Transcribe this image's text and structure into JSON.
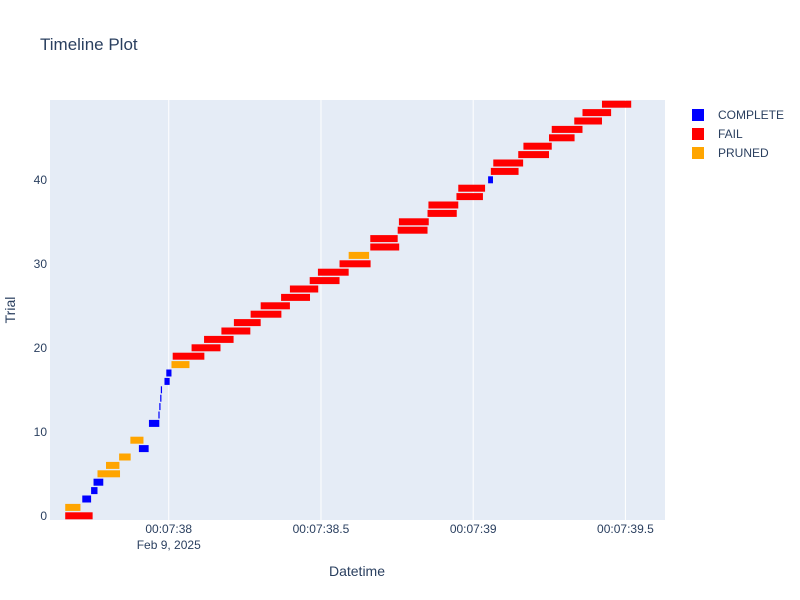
{
  "chart_data": {
    "type": "timeline",
    "title": "Timeline Plot",
    "xlabel": "Datetime",
    "ylabel": "Trial",
    "x_ticks": [
      {
        "value": "00:07:38.0",
        "label": "00:07:38",
        "sublabel": "Feb 9, 2025"
      },
      {
        "value": "00:07:38.5",
        "label": "00:07:38.5",
        "sublabel": ""
      },
      {
        "value": "00:07:39.0",
        "label": "00:07:39",
        "sublabel": ""
      },
      {
        "value": "00:07:39.5",
        "label": "00:07:39.5",
        "sublabel": ""
      }
    ],
    "xlim": [
      "00:07:37.61",
      "00:07:39.63"
    ],
    "y_ticks": [
      0,
      10,
      20,
      30,
      40
    ],
    "ylim": [
      -0.5,
      49.5
    ],
    "grid": true,
    "legend_position": "top-right",
    "colors": {
      "COMPLETE": "#0000ff",
      "FAIL": "#ff0000",
      "PRUNED": "#ffa500",
      "plot_bg": "#e5ecf6",
      "grid": "#ffffff",
      "text": "#2a3f5f"
    },
    "series": [
      {
        "name": "COMPLETE",
        "trials": [
          {
            "trial": 2,
            "start": "00:07:37.716",
            "end": "00:07:37.745"
          },
          {
            "trial": 3,
            "start": "00:07:37.745",
            "end": "00:07:37.766"
          },
          {
            "trial": 4,
            "start": "00:07:37.753",
            "end": "00:07:37.785"
          },
          {
            "trial": 8,
            "start": "00:07:37.902",
            "end": "00:07:37.934"
          },
          {
            "trial": 11,
            "start": "00:07:37.935",
            "end": "00:07:37.969"
          },
          {
            "trial": 12,
            "start": "00:07:37.966",
            "end": "00:07:37.970"
          },
          {
            "trial": 13,
            "start": "00:07:37.969",
            "end": "00:07:37.973"
          },
          {
            "trial": 14,
            "start": "00:07:37.972",
            "end": "00:07:37.976"
          },
          {
            "trial": 15,
            "start": "00:07:37.974",
            "end": "00:07:37.978"
          },
          {
            "trial": 16,
            "start": "00:07:37.986",
            "end": "00:07:38.003"
          },
          {
            "trial": 17,
            "start": "00:07:37.992",
            "end": "00:07:38.009"
          },
          {
            "trial": 40,
            "start": "00:07:39.049",
            "end": "00:07:39.065"
          }
        ]
      },
      {
        "name": "FAIL",
        "trials": [
          {
            "trial": 0,
            "start": "00:07:37.660",
            "end": "00:07:37.750"
          },
          {
            "trial": 19,
            "start": "00:07:38.013",
            "end": "00:07:38.117"
          },
          {
            "trial": 20,
            "start": "00:07:38.075",
            "end": "00:07:38.170"
          },
          {
            "trial": 21,
            "start": "00:07:38.116",
            "end": "00:07:38.213"
          },
          {
            "trial": 22,
            "start": "00:07:38.173",
            "end": "00:07:38.268"
          },
          {
            "trial": 23,
            "start": "00:07:38.214",
            "end": "00:07:38.302"
          },
          {
            "trial": 24,
            "start": "00:07:38.269",
            "end": "00:07:38.370"
          },
          {
            "trial": 25,
            "start": "00:07:38.302",
            "end": "00:07:38.398"
          },
          {
            "trial": 26,
            "start": "00:07:38.369",
            "end": "00:07:38.464"
          },
          {
            "trial": 27,
            "start": "00:07:38.398",
            "end": "00:07:38.491"
          },
          {
            "trial": 28,
            "start": "00:07:38.463",
            "end": "00:07:38.561"
          },
          {
            "trial": 29,
            "start": "00:07:38.490",
            "end": "00:07:38.591"
          },
          {
            "trial": 30,
            "start": "00:07:38.561",
            "end": "00:07:38.663"
          },
          {
            "trial": 32,
            "start": "00:07:38.662",
            "end": "00:07:38.757"
          },
          {
            "trial": 33,
            "start": "00:07:38.662",
            "end": "00:07:38.752"
          },
          {
            "trial": 34,
            "start": "00:07:38.752",
            "end": "00:07:38.850"
          },
          {
            "trial": 35,
            "start": "00:07:38.756",
            "end": "00:07:38.854"
          },
          {
            "trial": 36,
            "start": "00:07:38.850",
            "end": "00:07:38.946"
          },
          {
            "trial": 37,
            "start": "00:07:38.853",
            "end": "00:07:38.951"
          },
          {
            "trial": 38,
            "start": "00:07:38.945",
            "end": "00:07:39.032"
          },
          {
            "trial": 39,
            "start": "00:07:38.951",
            "end": "00:07:39.039"
          },
          {
            "trial": 41,
            "start": "00:07:39.058",
            "end": "00:07:39.149"
          },
          {
            "trial": 42,
            "start": "00:07:39.066",
            "end": "00:07:39.164"
          },
          {
            "trial": 43,
            "start": "00:07:39.148",
            "end": "00:07:39.249"
          },
          {
            "trial": 44,
            "start": "00:07:39.165",
            "end": "00:07:39.258"
          },
          {
            "trial": 45,
            "start": "00:07:39.249",
            "end": "00:07:39.333"
          },
          {
            "trial": 46,
            "start": "00:07:39.258",
            "end": "00:07:39.359"
          },
          {
            "trial": 47,
            "start": "00:07:39.332",
            "end": "00:07:39.423"
          },
          {
            "trial": 48,
            "start": "00:07:39.359",
            "end": "00:07:39.453"
          },
          {
            "trial": 49,
            "start": "00:07:39.423",
            "end": "00:07:39.519"
          }
        ]
      },
      {
        "name": "PRUNED",
        "trials": [
          {
            "trial": 1,
            "start": "00:07:37.660",
            "end": "00:07:37.710"
          },
          {
            "trial": 5,
            "start": "00:07:37.766",
            "end": "00:07:37.840"
          },
          {
            "trial": 6,
            "start": "00:07:37.794",
            "end": "00:07:37.838"
          },
          {
            "trial": 7,
            "start": "00:07:37.837",
            "end": "00:07:37.875"
          },
          {
            "trial": 9,
            "start": "00:07:37.874",
            "end": "00:07:37.917"
          },
          {
            "trial": 18,
            "start": "00:07:38.009",
            "end": "00:07:38.068"
          },
          {
            "trial": 31,
            "start": "00:07:38.591",
            "end": "00:07:38.658"
          }
        ]
      }
    ]
  }
}
